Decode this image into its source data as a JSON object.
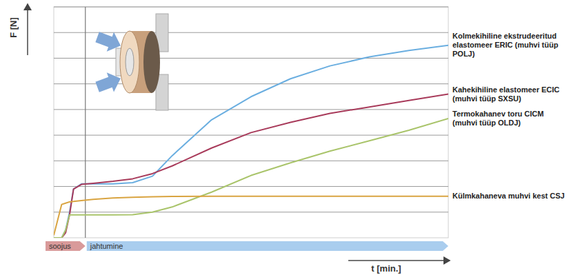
{
  "chart_data": {
    "type": "line",
    "y_label": "F [N]",
    "x_label": "t [min.]",
    "x": [
      0,
      2,
      3,
      4,
      5,
      7,
      10,
      15,
      20,
      25,
      30,
      40,
      50,
      60,
      70,
      80,
      90,
      100
    ],
    "xlim": [
      0,
      100
    ],
    "ylim": [
      0,
      9
    ],
    "yticks": [
      1,
      2,
      3,
      4,
      5,
      6,
      7,
      8,
      9
    ],
    "grid": true,
    "tick_labels": false,
    "phases": [
      {
        "label": "soojus",
        "start": 0,
        "end": 8,
        "color": "#d99a9a"
      },
      {
        "label": "jahtumine",
        "start": 8,
        "end": 100,
        "color": "#a9cdee"
      }
    ],
    "series": [
      {
        "name": "Kolmekihiline ekstrudeeritud elastomeer ERIC (muhvi tüüp POLJ)",
        "color": "#6aaee0",
        "values": [
          0,
          0,
          0.3,
          1.0,
          1.9,
          2.1,
          2.1,
          2.1,
          2.15,
          2.4,
          3.2,
          4.6,
          5.5,
          6.2,
          6.7,
          7.05,
          7.3,
          7.5
        ]
      },
      {
        "name": "Kahekihiline elastomeer ECIC (muhvi tüüp SXSU)",
        "color": "#a83a5a",
        "values": [
          0,
          0,
          0.2,
          0.9,
          1.9,
          2.08,
          2.12,
          2.2,
          2.3,
          2.5,
          2.8,
          3.5,
          4.1,
          4.5,
          4.85,
          5.1,
          5.35,
          5.6
        ]
      },
      {
        "name": "Termokahanev toru CICM (muhvi tüüp OLDJ)",
        "color": "#a9c46a",
        "values": [
          0,
          0,
          0.3,
          0.89,
          0.89,
          0.89,
          0.89,
          0.89,
          0.9,
          1.0,
          1.2,
          1.78,
          2.43,
          2.92,
          3.38,
          3.78,
          4.19,
          4.65
        ]
      },
      {
        "name": "Külmkahaneva muhvi kest CSJ",
        "color": "#d9a441",
        "values": [
          0.1,
          1.3,
          1.35,
          1.4,
          1.42,
          1.45,
          1.5,
          1.55,
          1.58,
          1.6,
          1.61,
          1.62,
          1.62,
          1.62,
          1.62,
          1.62,
          1.62,
          1.62
        ]
      }
    ]
  }
}
